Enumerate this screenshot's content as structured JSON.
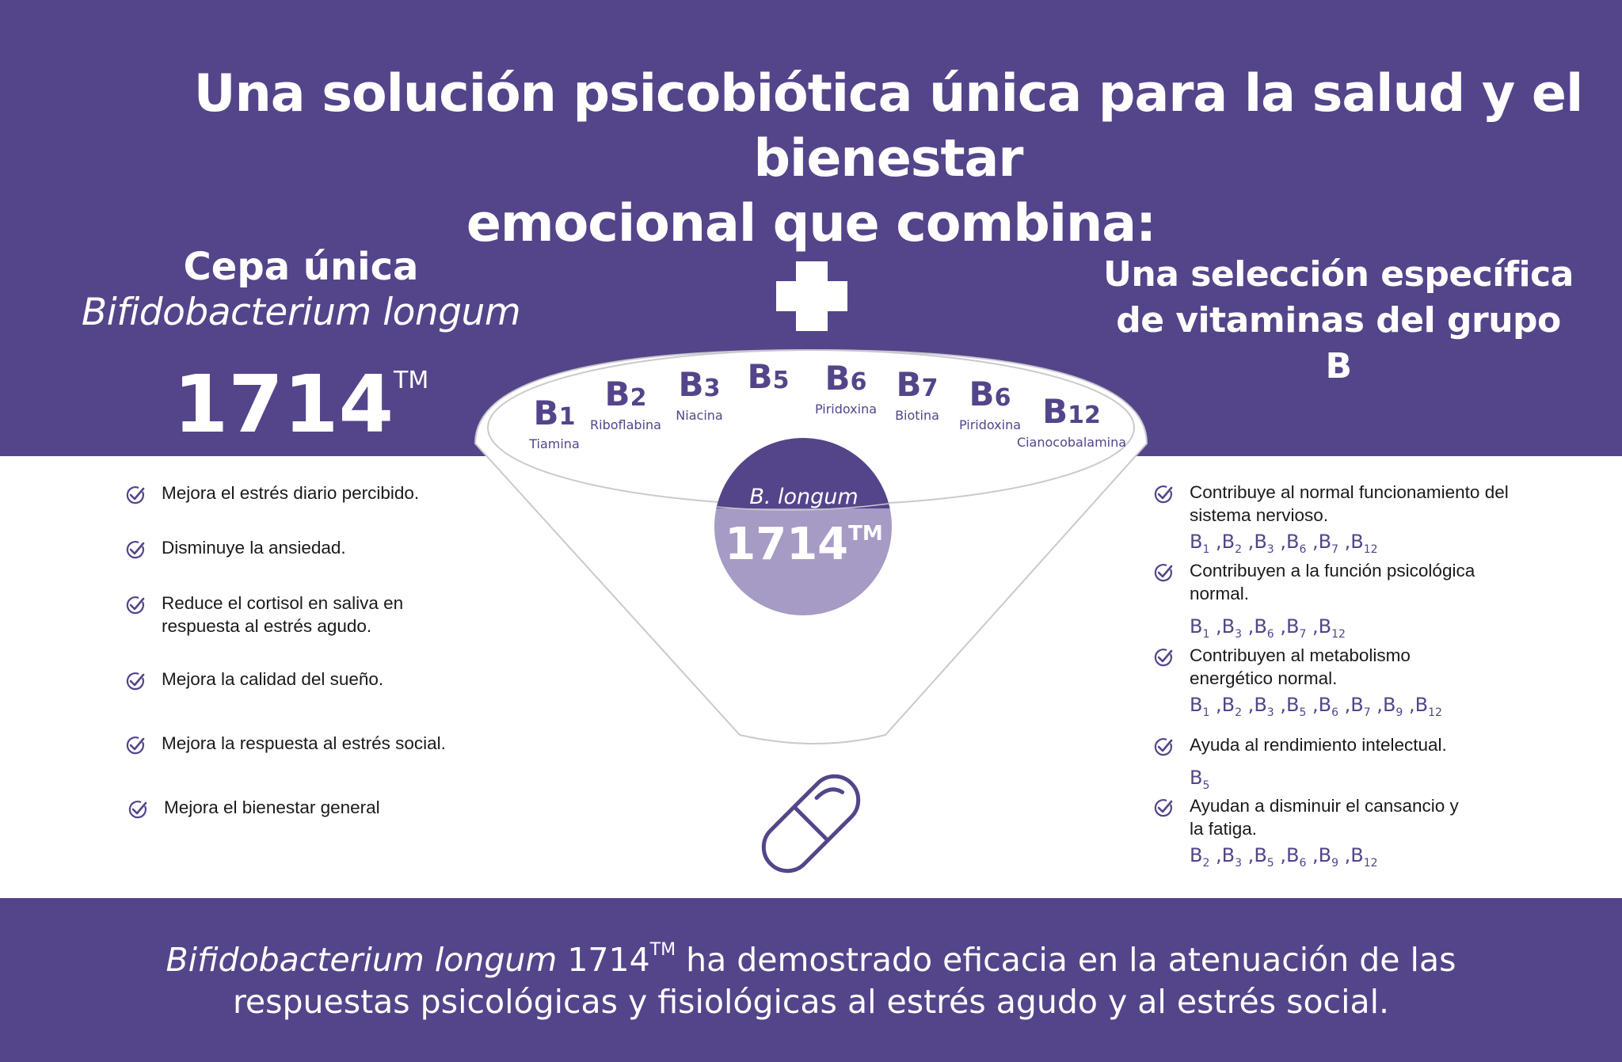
{
  "title": {
    "line1": "Una solución psicobiótica única para la salud y el bienestar",
    "line2": "emocional que combina:"
  },
  "left_heading": {
    "line1": "Cepa única",
    "line2": "Bifidobacterium longum",
    "number": "1714",
    "tm": "TM"
  },
  "right_heading": {
    "line1": "Una selección específica",
    "line2": "de vitaminas del grupo B"
  },
  "vitamins": [
    {
      "letter": "B",
      "num": "1",
      "name": "Tiamina"
    },
    {
      "letter": "B",
      "num": "2",
      "name": "Riboflabina"
    },
    {
      "letter": "B",
      "num": "3",
      "name": "Niacina"
    },
    {
      "letter": "B",
      "num": "5",
      "name": ""
    },
    {
      "letter": "B",
      "num": "6",
      "name": "Piridoxina"
    },
    {
      "letter": "B",
      "num": "7",
      "name": "Biotina"
    },
    {
      "letter": "B",
      "num": "6",
      "name": "Piridoxina"
    },
    {
      "letter": "B",
      "num": "12",
      "name": "Cianocobalamina"
    }
  ],
  "circle": {
    "species": "B. longum",
    "number": "1714",
    "tm": "TM"
  },
  "left_benefits": [
    "Mejora el estrés diario percibido.",
    "Disminuye la ansiedad.",
    "Reduce el cortisol en saliva en respuesta al estrés agudo.",
    "Mejora la calidad del sueño.",
    "Mejora la respuesta al estrés social.",
    "Mejora el bienestar general"
  ],
  "right_benefits": [
    {
      "text": "Contribuye al normal funcionamiento del sistema nervioso.",
      "codes": [
        "1",
        "2",
        "3",
        "6",
        "7",
        "12"
      ]
    },
    {
      "text": "Contribuyen a la función psicológica normal.",
      "codes": [
        "1",
        "3",
        "6",
        "7",
        "12"
      ]
    },
    {
      "text": "Contribuyen al metabolismo energético normal.",
      "codes": [
        "1",
        "2",
        "3",
        "5",
        "6",
        "7",
        "9",
        "12"
      ]
    },
    {
      "text": "Ayuda al rendimiento intelectual.",
      "codes": [
        "5"
      ]
    },
    {
      "text": "Ayudan a disminuir el cansancio y la fatiga.",
      "codes": [
        "2",
        "3",
        "5",
        "6",
        "9",
        "12"
      ]
    }
  ],
  "bottom": {
    "italic": "Bifidobacterium longum",
    "number": "1714",
    "tm": "TM",
    "rest1": "ha demostrado eficacia en la atenuación de las",
    "line2": "respuestas psicológicas y fisiológicas al estrés agudo y al estrés social."
  },
  "colors": {
    "brand_purple": "#54458a",
    "circle_light": "#a69bc4",
    "white": "#ffffff"
  },
  "icons": [
    "check-circle-icon",
    "capsule-icon",
    "plus-icon"
  ]
}
